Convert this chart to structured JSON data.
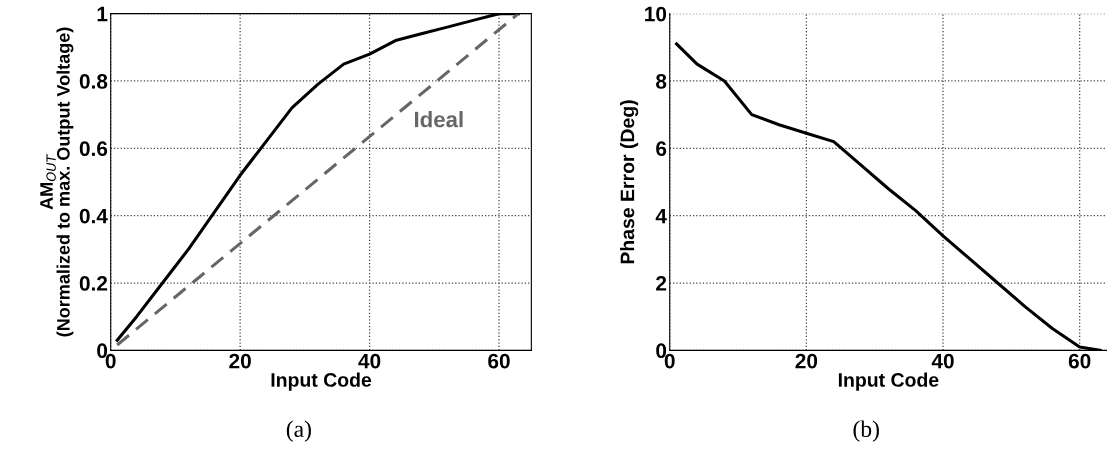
{
  "chart_data": [
    {
      "type": "line",
      "xlabel": "Input Code",
      "ylabel": "AM$_{OUT}$\n(Normalized to max. Output Voltage)",
      "xlim": [
        0,
        65
      ],
      "ylim": [
        0,
        1
      ],
      "xticks": [
        0,
        20,
        40,
        60
      ],
      "yticks": [
        0,
        0.2,
        0.4,
        0.6,
        0.8,
        1
      ],
      "grid": true,
      "annotations": [
        "Ideal",
        "(a)"
      ],
      "series": [
        {
          "color": "#000000",
          "x": [
            1,
            4,
            8,
            12,
            16,
            20,
            24,
            28,
            32,
            36,
            40,
            44,
            48,
            52,
            56,
            60,
            63
          ],
          "values": [
            0.03,
            0.1,
            0.2,
            0.3,
            0.41,
            0.52,
            0.62,
            0.72,
            0.79,
            0.85,
            0.88,
            0.92,
            0.94,
            0.96,
            0.98,
            1.0,
            1.0
          ]
        },
        {
          "color": "#666666",
          "line_style": "dashed",
          "x": [
            1,
            63
          ],
          "values": [
            0.016,
            1.0
          ]
        }
      ]
    },
    {
      "type": "line",
      "xlabel": "Input Code",
      "ylabel": "Phase Error (Deg)",
      "xlim": [
        0,
        64
      ],
      "ylim": [
        0,
        10
      ],
      "xticks": [
        0,
        20,
        40,
        60
      ],
      "yticks": [
        0,
        2,
        4,
        6,
        8,
        10
      ],
      "grid": true,
      "annotations": [
        "(b)"
      ],
      "series": [
        {
          "color": "#000000",
          "x": [
            1,
            4,
            8,
            12,
            16,
            20,
            24,
            28,
            32,
            36,
            40,
            44,
            48,
            52,
            56,
            60,
            63
          ],
          "values": [
            9.1,
            8.5,
            8.0,
            7.0,
            6.7,
            6.45,
            6.2,
            5.5,
            4.8,
            4.15,
            3.4,
            2.7,
            2.0,
            1.3,
            0.65,
            0.1,
            0.0
          ]
        }
      ]
    }
  ]
}
